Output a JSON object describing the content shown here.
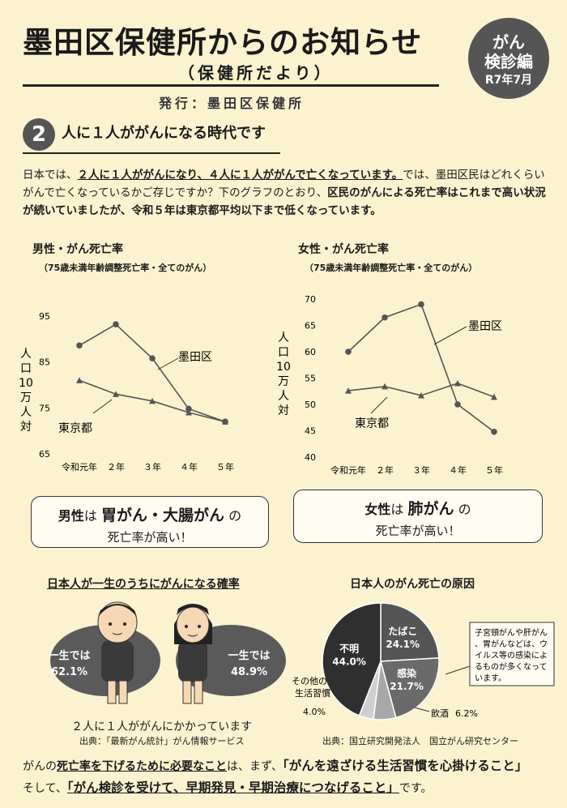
{
  "header": {
    "title": "墨田区保健所からのお知らせ",
    "subtitle": "（保健所だより）",
    "publisher": "発行：墨田区保健所",
    "badge": {
      "line1": "がん",
      "line2": "検診編",
      "line3": "R7年7月"
    }
  },
  "section": {
    "number": "2",
    "title": "人に１人ががんになる時代です"
  },
  "intro": {
    "p1": "日本では、",
    "p2": "２人に１人ががんになり、４人に１人ががんで亡くなっています。",
    "p3": "では、墨田区民はどれくらいがんで亡くなっているかご存じですか？下のグラフのとおり、",
    "p4": "区民のがんによる死亡率はこれまで高い状況が続いていましたが、令和５年は東京都平均以下まで低くなっています。"
  },
  "chart_data": [
    {
      "type": "line",
      "title": "男性・がん死亡率",
      "subtitle": "（75歳未満年齢調整死亡率・全てのがん）",
      "ylabel": "人口10万人対",
      "ylim": [
        65,
        95
      ],
      "yticks": [
        "95",
        "85",
        "75",
        "65"
      ],
      "categories": [
        "令和元年",
        "２年",
        "３年",
        "４年",
        "５年"
      ],
      "series": [
        {
          "name": "墨田区",
          "values": [
            88.6,
            93.2,
            85.8,
            74.8,
            72
          ]
        },
        {
          "name": "東京都",
          "values": [
            81,
            78,
            76.5,
            74,
            72
          ]
        }
      ]
    },
    {
      "type": "line",
      "title": "女性・がん死亡率",
      "subtitle": "（75歳未満年齢調整死亡率・全てのがん）",
      "ylabel": "人口10万人対",
      "ylim": [
        40,
        70
      ],
      "yticks": [
        "70",
        "65",
        "60",
        "55",
        "50",
        "45",
        "40"
      ],
      "categories": [
        "令和元年",
        "２年",
        "３年",
        "４年",
        "５年"
      ],
      "series": [
        {
          "name": "墨田区",
          "values": [
            60,
            66.5,
            69,
            50,
            44.8
          ]
        },
        {
          "name": "東京都",
          "values": [
            52.6,
            53.4,
            51.7,
            54,
            51.4
          ]
        }
      ]
    },
    {
      "type": "pie",
      "title": "日本人のがん死亡の原因",
      "slices": [
        {
          "label": "たばこ",
          "value": 24.1,
          "text": "24.1%",
          "color": "#555555"
        },
        {
          "label": "感染",
          "value": 21.7,
          "text": "21.7%",
          "color": "#6a6a6a"
        },
        {
          "label": "飲酒",
          "value": 6.2,
          "text": "6.2%",
          "color": "#a8a8a8"
        },
        {
          "label": "その他の生活習慣",
          "value": 4.0,
          "text": "4.0%",
          "color": "#cfcfcf"
        },
        {
          "label": "不明",
          "value": 44.0,
          "text": "44.0%",
          "color": "#2f2f2f"
        }
      ],
      "source": "出典：国立研究開発法人　国立がん研究センター"
    }
  ],
  "callouts": {
    "male": {
      "a": "男性",
      "b": "は",
      "c": "胃がん・大腸がん",
      "d": "の",
      "e": "死亡率が高い！"
    },
    "female": {
      "a": "女性",
      "b": "は",
      "c": "肺がん",
      "d": "の",
      "e": "死亡率が高い！"
    }
  },
  "lifetime": {
    "title": "日本人が一生のうちにがんになる確率",
    "male": {
      "label": "一生では",
      "value": "62.1%"
    },
    "female": {
      "label": "一生では",
      "value": "48.9%"
    },
    "caption": "２人に１人ががんにかかっています",
    "source": "出典：「最新がん統計」がん情報サービス"
  },
  "pie_note": "子宮頸がんや肝がん、胃がんなどは、ウイルス等の感染によるものが多くなっています。",
  "footer": {
    "t1": "がんの",
    "t2": "死亡率を下げるために必要なこと",
    "t3": "は、まず、",
    "t4": "「がんを遠ざける生活習慣を心掛けること」",
    "t5": "そして、",
    "t6": "「がん検診を受けて、早期発見・早期治療につなげること」",
    "t7": "です。"
  }
}
